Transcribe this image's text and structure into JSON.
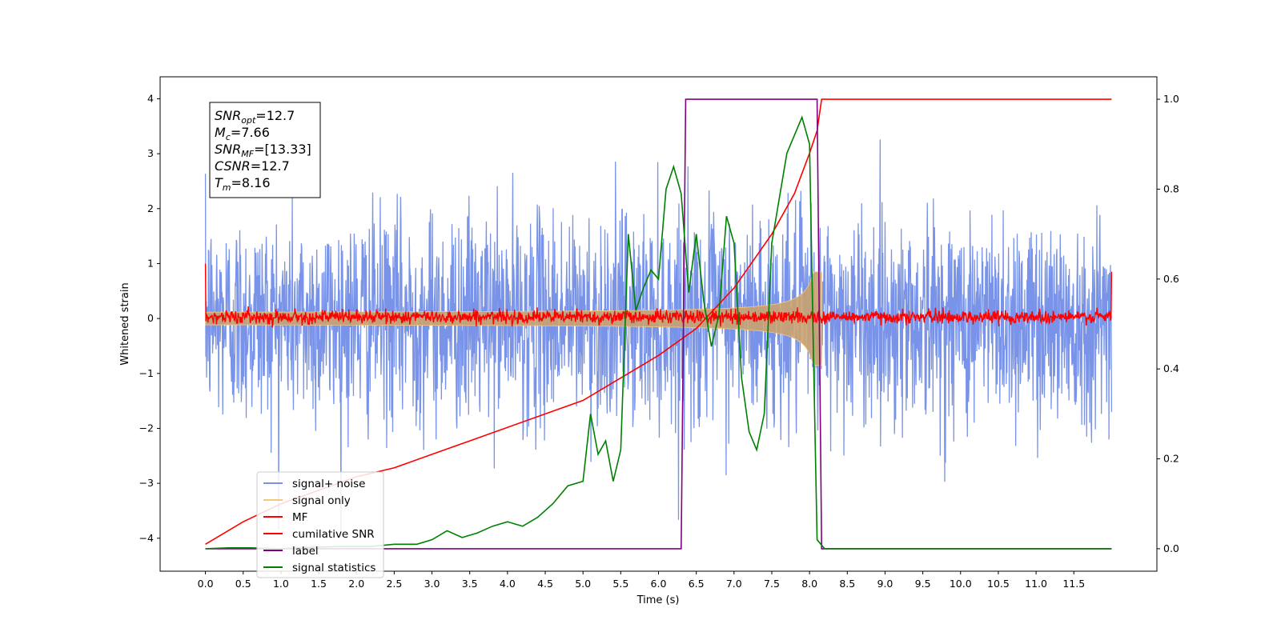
{
  "chart_data": {
    "type": "line",
    "title": "",
    "xlabel": "Time (s)",
    "ylabel": "Whitened strain",
    "xlim": [
      -0.6,
      12.6
    ],
    "ylim_left": [
      -4.6,
      4.4
    ],
    "ylim_right": [
      -0.05,
      1.05
    ],
    "x_ticks": [
      "0.0",
      "0.5",
      "1.0",
      "1.5",
      "2.0",
      "2.5",
      "3.0",
      "3.5",
      "4.0",
      "4.5",
      "5.0",
      "5.5",
      "6.0",
      "6.5",
      "7.0",
      "7.5",
      "8.0",
      "8.5",
      "9.0",
      "9.5",
      "10.0",
      "10.5",
      "11.0",
      "11.5"
    ],
    "y_ticks_left": [
      "−4",
      "−3",
      "−2",
      "−1",
      "0",
      "1",
      "2",
      "3",
      "4"
    ],
    "y_ticks_right": [
      "0.0",
      "0.2",
      "0.4",
      "0.6",
      "0.8",
      "1.0"
    ],
    "grid": false,
    "legend_position": "lower-left",
    "annotation": [
      {
        "base": "SNR",
        "sub": "opt",
        "value": "=12.7"
      },
      {
        "base": "M",
        "sub": "c",
        "value": "=7.66"
      },
      {
        "base": "SNR",
        "sub": "MF",
        "value": "=[13.33]"
      },
      {
        "base": "CSNR",
        "sub": "",
        "value": "=12.7"
      },
      {
        "base": "T",
        "sub": "m",
        "value": "=8.16"
      }
    ],
    "series": [
      {
        "name": "signal+ noise",
        "color": "#7893e8",
        "axis": "left",
        "kind": "noise",
        "x_start": 0,
        "x_end": 12.0,
        "sigma": 0.95
      },
      {
        "name": "signal only",
        "color": "#f5c87f",
        "axis": "left",
        "kind": "chirp",
        "merger_time": 8.16
      },
      {
        "name": "MF",
        "color": "#ff0000",
        "axis": "left",
        "kind": "noise",
        "sigma": 0.06
      },
      {
        "name": "cumilative SNR",
        "color": "#ff0000",
        "axis": "right",
        "x": [
          0.0,
          0.5,
          1.0,
          1.5,
          2.0,
          2.5,
          3.0,
          3.5,
          4.0,
          4.5,
          5.0,
          5.5,
          6.0,
          6.5,
          7.0,
          7.5,
          7.8,
          8.0,
          8.1,
          8.16,
          12.0
        ],
        "values": [
          0.01,
          0.06,
          0.1,
          0.13,
          0.16,
          0.18,
          0.21,
          0.24,
          0.27,
          0.3,
          0.33,
          0.38,
          0.43,
          0.49,
          0.58,
          0.7,
          0.79,
          0.88,
          0.93,
          1.0,
          1.0
        ]
      },
      {
        "name": "label",
        "color": "#800080",
        "axis": "right",
        "x": [
          0.0,
          6.3,
          6.36,
          8.1,
          8.16,
          12.0
        ],
        "values": [
          0.0,
          0.0,
          1.0,
          1.0,
          0.0,
          0.0
        ]
      },
      {
        "name": "signal statistics",
        "color": "#008000",
        "axis": "right",
        "x": [
          0.0,
          0.3,
          0.6,
          1.0,
          1.4,
          1.8,
          2.2,
          2.5,
          2.8,
          3.0,
          3.2,
          3.4,
          3.6,
          3.8,
          4.0,
          4.2,
          4.4,
          4.6,
          4.8,
          5.0,
          5.1,
          5.2,
          5.3,
          5.4,
          5.5,
          5.6,
          5.7,
          5.8,
          5.9,
          6.0,
          6.1,
          6.2,
          6.3,
          6.4,
          6.5,
          6.6,
          6.7,
          6.8,
          6.9,
          7.0,
          7.1,
          7.2,
          7.3,
          7.4,
          7.5,
          7.6,
          7.7,
          7.8,
          7.9,
          8.0,
          8.05,
          8.1,
          8.2,
          8.5,
          9.0,
          10.0,
          11.0,
          12.0
        ],
        "values": [
          0.0,
          0.002,
          0.002,
          0.0,
          0.003,
          0.005,
          0.005,
          0.01,
          0.01,
          0.02,
          0.04,
          0.025,
          0.035,
          0.05,
          0.06,
          0.05,
          0.07,
          0.1,
          0.14,
          0.15,
          0.3,
          0.21,
          0.24,
          0.15,
          0.22,
          0.7,
          0.53,
          0.58,
          0.62,
          0.6,
          0.8,
          0.85,
          0.79,
          0.57,
          0.7,
          0.55,
          0.45,
          0.52,
          0.74,
          0.68,
          0.38,
          0.26,
          0.22,
          0.3,
          0.68,
          0.78,
          0.88,
          0.92,
          0.96,
          0.9,
          0.45,
          0.02,
          0.0,
          0.0,
          0.0,
          0.0,
          0.0,
          0.0
        ]
      }
    ]
  }
}
